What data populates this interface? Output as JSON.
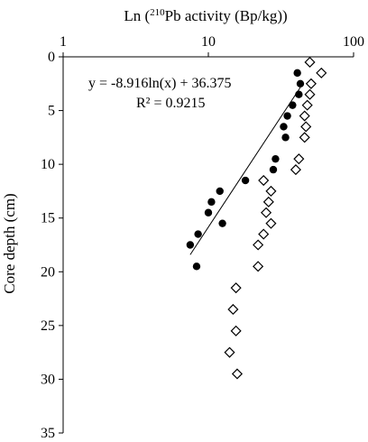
{
  "chart_data": {
    "type": "scatter",
    "title": "",
    "xlabel_prefix": "Ln (",
    "xlabel_sup": "210",
    "xlabel_suffix": "Pb activity (Bp/kg))",
    "ylabel": "Core depth (cm)",
    "x_scale": "log",
    "xlim": [
      1,
      100
    ],
    "ylim": [
      0,
      35
    ],
    "y_reversed": true,
    "x_axis_position": "top",
    "grid": false,
    "legend": "none",
    "x_ticks": [
      1,
      10,
      100
    ],
    "y_ticks": [
      0,
      5,
      10,
      15,
      20,
      25,
      30,
      35
    ],
    "series": [
      {
        "marker": "filled-circle",
        "points": [
          {
            "x": 41,
            "y": 1.5
          },
          {
            "x": 43,
            "y": 2.5
          },
          {
            "x": 42,
            "y": 3.5
          },
          {
            "x": 38,
            "y": 4.5
          },
          {
            "x": 35,
            "y": 5.5
          },
          {
            "x": 33,
            "y": 6.5
          },
          {
            "x": 34,
            "y": 7.5
          },
          {
            "x": 29,
            "y": 9.5
          },
          {
            "x": 28,
            "y": 10.5
          },
          {
            "x": 18,
            "y": 11.5
          },
          {
            "x": 12,
            "y": 12.5
          },
          {
            "x": 10.5,
            "y": 13.5
          },
          {
            "x": 10,
            "y": 14.5
          },
          {
            "x": 12.5,
            "y": 15.5
          },
          {
            "x": 8.5,
            "y": 16.5
          },
          {
            "x": 7.5,
            "y": 17.5
          },
          {
            "x": 8.3,
            "y": 19.5
          }
        ]
      },
      {
        "marker": "open-diamond",
        "points": [
          {
            "x": 50,
            "y": 0.5
          },
          {
            "x": 60,
            "y": 1.5
          },
          {
            "x": 51,
            "y": 2.5
          },
          {
            "x": 50,
            "y": 3.5
          },
          {
            "x": 48,
            "y": 4.5
          },
          {
            "x": 46,
            "y": 5.5
          },
          {
            "x": 47,
            "y": 6.5
          },
          {
            "x": 46,
            "y": 7.5
          },
          {
            "x": 42,
            "y": 9.5
          },
          {
            "x": 40,
            "y": 10.5
          },
          {
            "x": 24,
            "y": 11.5
          },
          {
            "x": 27,
            "y": 12.5
          },
          {
            "x": 26,
            "y": 13.5
          },
          {
            "x": 25,
            "y": 14.5
          },
          {
            "x": 27,
            "y": 15.5
          },
          {
            "x": 24,
            "y": 16.5
          },
          {
            "x": 22,
            "y": 17.5
          },
          {
            "x": 22,
            "y": 19.5
          },
          {
            "x": 15.5,
            "y": 21.5
          },
          {
            "x": 14.8,
            "y": 23.5
          },
          {
            "x": 15.5,
            "y": 25.5
          },
          {
            "x": 14,
            "y": 27.5
          },
          {
            "x": 15.8,
            "y": 29.5
          }
        ]
      }
    ],
    "trendline": {
      "equation": "y = -8.916ln(x) + 36.375",
      "r_squared": "R² = 0.9215",
      "slope": -8.916,
      "intercept": 36.375,
      "x_range": [
        7.5,
        43
      ]
    }
  }
}
